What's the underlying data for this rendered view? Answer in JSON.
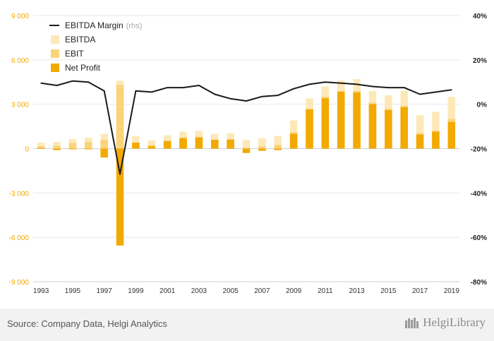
{
  "chart_data": {
    "type": "bar",
    "title": "",
    "xlabel": "",
    "ylabel": "",
    "x": [
      1993,
      1994,
      1995,
      1996,
      1997,
      1998,
      1999,
      2000,
      2001,
      2002,
      2003,
      2004,
      2005,
      2006,
      2007,
      2008,
      2009,
      2010,
      2011,
      2012,
      2013,
      2014,
      2015,
      2016,
      2017,
      2018,
      2019
    ],
    "x_tick_labels": [
      "1993",
      "1995",
      "1997",
      "1999",
      "2001",
      "2003",
      "2005",
      "2007",
      "2009",
      "2011",
      "2013",
      "2015",
      "2017",
      "2019"
    ],
    "ylim": [
      -9000,
      9000
    ],
    "y_ticks": [
      "9 000",
      "6 000",
      "3 000",
      "0",
      "-3 000",
      "-6 000",
      "-9 000"
    ],
    "y2lim": [
      -80,
      40
    ],
    "y2_ticks": [
      "40%",
      "20%",
      "0%",
      "-20%",
      "-40%",
      "-60%",
      "-80%"
    ],
    "series": [
      {
        "name": "EBITDA",
        "kind": "bar",
        "color": "#fde9b8",
        "values": [
          400,
          450,
          650,
          750,
          1000,
          4600,
          850,
          550,
          900,
          1150,
          1200,
          1000,
          1050,
          600,
          700,
          850,
          1900,
          3400,
          4200,
          4600,
          4700,
          3900,
          3600,
          3900,
          2250,
          2500,
          3500
        ]
      },
      {
        "name": "EBIT",
        "kind": "bar",
        "color": "#fbd37a",
        "values": [
          150,
          200,
          380,
          450,
          600,
          4300,
          400,
          250,
          550,
          750,
          800,
          600,
          650,
          50,
          150,
          250,
          1100,
          2700,
          3500,
          3900,
          3900,
          3100,
          2700,
          2900,
          1050,
          1200,
          2000
        ]
      },
      {
        "name": "Net Profit",
        "kind": "bar",
        "color": "#f2a900",
        "values": [
          50,
          -100,
          -50,
          -50,
          -600,
          -6550,
          400,
          150,
          500,
          700,
          750,
          600,
          600,
          -300,
          -150,
          -100,
          1000,
          2650,
          3400,
          3850,
          3800,
          3000,
          2600,
          2800,
          950,
          1150,
          1800
        ]
      },
      {
        "name": "EBITDA Margin",
        "kind": "line",
        "axis": "right",
        "color": "#1a1a1a",
        "values": [
          9.5,
          8.5,
          10.5,
          10,
          6,
          -31.5,
          6,
          5.5,
          7.5,
          7.5,
          8.5,
          4.5,
          2.5,
          1.5,
          3.5,
          4,
          7,
          9,
          10,
          9.5,
          9,
          8,
          7.5,
          7.5,
          4.5,
          5.5,
          6.5
        ]
      }
    ],
    "legend": {
      "placement": "top-left",
      "items": [
        "EBITDA Margin",
        "EBITDA",
        "EBIT",
        "Net Profit"
      ],
      "rhs_suffix": "(rhs)"
    },
    "grid": true,
    "colors": {
      "left_axis": "#f2a900",
      "right_axis": "#222222",
      "grid": "#e8e8e8"
    }
  },
  "footer": {
    "source": "Source: Company Data, Helgi Analytics",
    "brand": "HelgiLibrary"
  }
}
